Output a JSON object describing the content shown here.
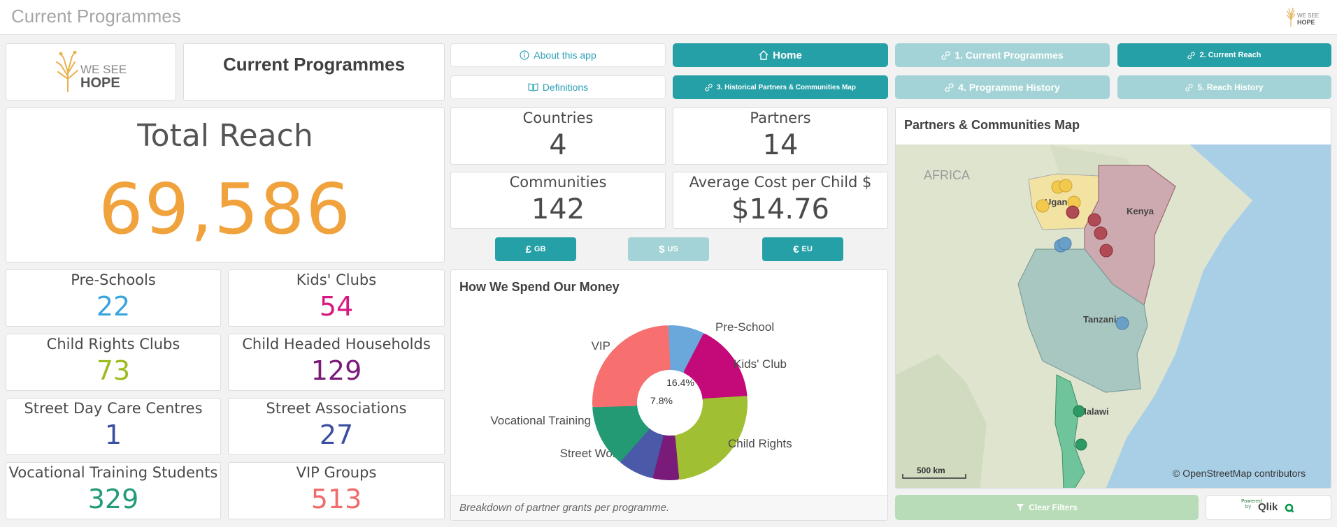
{
  "app": {
    "title": "Current Programmes"
  },
  "header": {
    "brand_line1": "WE SEE",
    "brand_line2": "HOPE",
    "page_heading": "Current Programmes"
  },
  "nav": {
    "about": "About this app",
    "definitions": "Definitions",
    "home": "Home",
    "historical": "3. Historical Partners & Communities Map",
    "current_programmes": "1. Current Programmes",
    "current_reach": "2. Current Reach",
    "programme_history": "4. Programme History",
    "reach_history": "5. Reach History"
  },
  "total_reach": {
    "label": "Total Reach",
    "value": "69,586",
    "color": "#f0a23c"
  },
  "programmes": [
    {
      "label": "Pre-Schools",
      "value": "22",
      "color": "#3aa4dc"
    },
    {
      "label": "Kids' Clubs",
      "value": "54",
      "color": "#d6187f"
    },
    {
      "label": "Child Rights Clubs",
      "value": "73",
      "color": "#9cbc1f"
    },
    {
      "label": "Child Headed Households",
      "value": "129",
      "color": "#7a1b7a"
    },
    {
      "label": "Street Day Care Centres",
      "value": "1",
      "color": "#3b4fa0"
    },
    {
      "label": "Street Associations",
      "value": "27",
      "color": "#3b4fa0"
    },
    {
      "label": "Vocational Training Students",
      "value": "329",
      "color": "#239a7a"
    },
    {
      "label": "VIP Groups",
      "value": "513",
      "color": "#f16b6b"
    }
  ],
  "stats": {
    "countries": {
      "label": "Countries",
      "value": "4"
    },
    "partners": {
      "label": "Partners",
      "value": "14"
    },
    "communities": {
      "label": "Communities",
      "value": "142"
    },
    "avg_cost": {
      "label": "Average Cost per Child $",
      "value": "$14.76"
    }
  },
  "currency": [
    {
      "symbol": "£",
      "code": "GB",
      "active": true
    },
    {
      "symbol": "$",
      "code": "US",
      "active": false
    },
    {
      "symbol": "€",
      "code": "EU",
      "active": true
    }
  ],
  "spend": {
    "title": "How We Spend Our Money",
    "footnote": "Breakdown of partner grants per programme."
  },
  "chart_data": {
    "type": "pie",
    "title": "How We Spend Our Money",
    "donut": true,
    "slices": [
      {
        "label": "Pre-School",
        "value": 7.8,
        "color": "#6aa8dc"
      },
      {
        "label": "Kids' Club",
        "value": 16.4,
        "color": "#c40a79"
      },
      {
        "label": "Child Rights",
        "value": 24.5,
        "color": "#a0bf32"
      },
      {
        "label": "",
        "value": 5.5,
        "color": "#7a1b7a"
      },
      {
        "label": "Street Work",
        "value": 7.5,
        "color": "#4a59a8"
      },
      {
        "label": "Vocational Training",
        "value": 13.0,
        "color": "#239a74"
      },
      {
        "label": "VIP",
        "value": 25.3,
        "color": "#f76f6f"
      }
    ],
    "inner_labels": [
      "16.4%",
      "7.8%"
    ]
  },
  "map": {
    "title": "Partners & Communities Map",
    "labels": {
      "africa": "AFRICA",
      "uganda": "Uganda",
      "kenya": "Kenya",
      "tanzania": "Tanzania",
      "malawi": "Malawi"
    },
    "scale": "500 km",
    "attribution": "© OpenStreetMap contributors"
  },
  "footer": {
    "clear_filters": "Clear Filters",
    "powered_by": "Powered by",
    "qlik": "Qlik"
  }
}
